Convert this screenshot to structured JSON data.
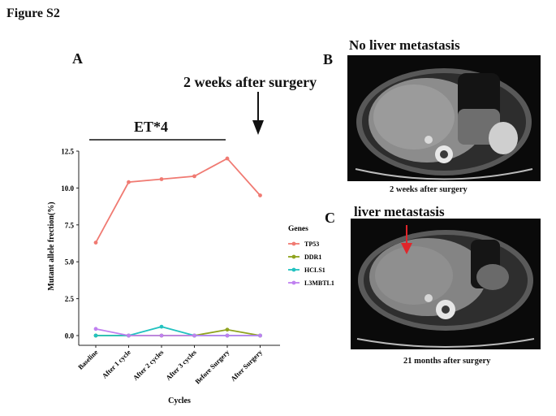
{
  "figure_title": "Figure S2",
  "panels": {
    "a": "A",
    "b": "B",
    "c": "C"
  },
  "annotations": {
    "surgery": "2 weeks after surgery",
    "et": "ET*4"
  },
  "ct_images": {
    "b": {
      "title": "No liver metastasis",
      "caption": "2 weeks after surgery"
    },
    "c": {
      "title": "liver metastasis",
      "caption": "21 months after surgery",
      "arrow_color": "#e0262b"
    }
  },
  "chart_data": {
    "type": "line",
    "categories": [
      "Baseline",
      "After 1 cycle",
      "After 2 cycles",
      "After 3 cycles",
      "Before Surgery",
      "After Surgery"
    ],
    "xlabel": "Cycles",
    "ylabel": "Mutant allele frection(%)",
    "ylim": [
      0,
      12.5
    ],
    "yticks": [
      "0.0",
      "2.5",
      "5.0",
      "7.5",
      "10.0",
      "12.5"
    ],
    "legend_title": "Genes",
    "legend_position": "right",
    "grid": false,
    "series": [
      {
        "name": "TP53",
        "color": "#f07a72",
        "values": [
          6.3,
          10.4,
          10.6,
          10.8,
          12.0,
          9.5
        ]
      },
      {
        "name": "DDR1",
        "color": "#8fa31e",
        "values": [
          0.0,
          0.0,
          0.0,
          0.0,
          0.4,
          0.0
        ]
      },
      {
        "name": "HCLS1",
        "color": "#22c2c0",
        "values": [
          0.0,
          0.0,
          0.6,
          0.0,
          0.0,
          0.0
        ]
      },
      {
        "name": "L3MBTL1",
        "color": "#c080f0",
        "values": [
          0.45,
          0.0,
          0.0,
          0.0,
          0.0,
          0.0
        ]
      }
    ]
  }
}
